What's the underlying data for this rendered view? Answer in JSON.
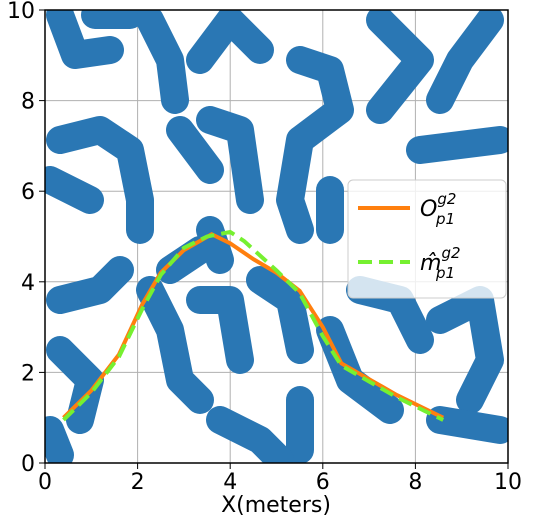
{
  "chart_data": {
    "type": "line",
    "xlabel": "X(meters)",
    "xlim": [
      0,
      10
    ],
    "ylim": [
      0,
      10
    ],
    "xticks": [
      0,
      2,
      4,
      6,
      8,
      10
    ],
    "yticks": [
      0,
      2,
      4,
      6,
      8,
      10
    ],
    "grid": true,
    "legend_loc": "right",
    "series": [
      {
        "name": "O",
        "sup": "g2",
        "sub": "p1",
        "color": "#ff7f0e",
        "dash": false,
        "x": [
          0.4,
          1.0,
          1.6,
          2.1,
          2.5,
          3.0,
          3.6,
          4.0,
          4.5,
          5.0,
          5.5,
          6.0,
          6.4,
          7.0,
          7.6,
          8.2,
          8.6
        ],
        "values": [
          1.0,
          1.6,
          2.4,
          3.5,
          4.2,
          4.7,
          5.05,
          4.85,
          4.5,
          4.2,
          3.8,
          3.0,
          2.2,
          1.85,
          1.5,
          1.2,
          1.0
        ]
      },
      {
        "name": "m̂",
        "sup": "g2",
        "sub": "p1",
        "color": "#76f030",
        "dash": true,
        "x": [
          0.4,
          1.0,
          1.6,
          2.1,
          2.5,
          3.0,
          3.5,
          4.0,
          4.3,
          5.0,
          5.5,
          6.0,
          6.4,
          7.0,
          7.6,
          8.2,
          8.6
        ],
        "values": [
          0.95,
          1.55,
          2.35,
          3.4,
          4.15,
          4.75,
          5.0,
          5.1,
          4.9,
          4.25,
          3.75,
          2.8,
          2.15,
          1.8,
          1.45,
          1.15,
          0.95
        ]
      }
    ]
  }
}
